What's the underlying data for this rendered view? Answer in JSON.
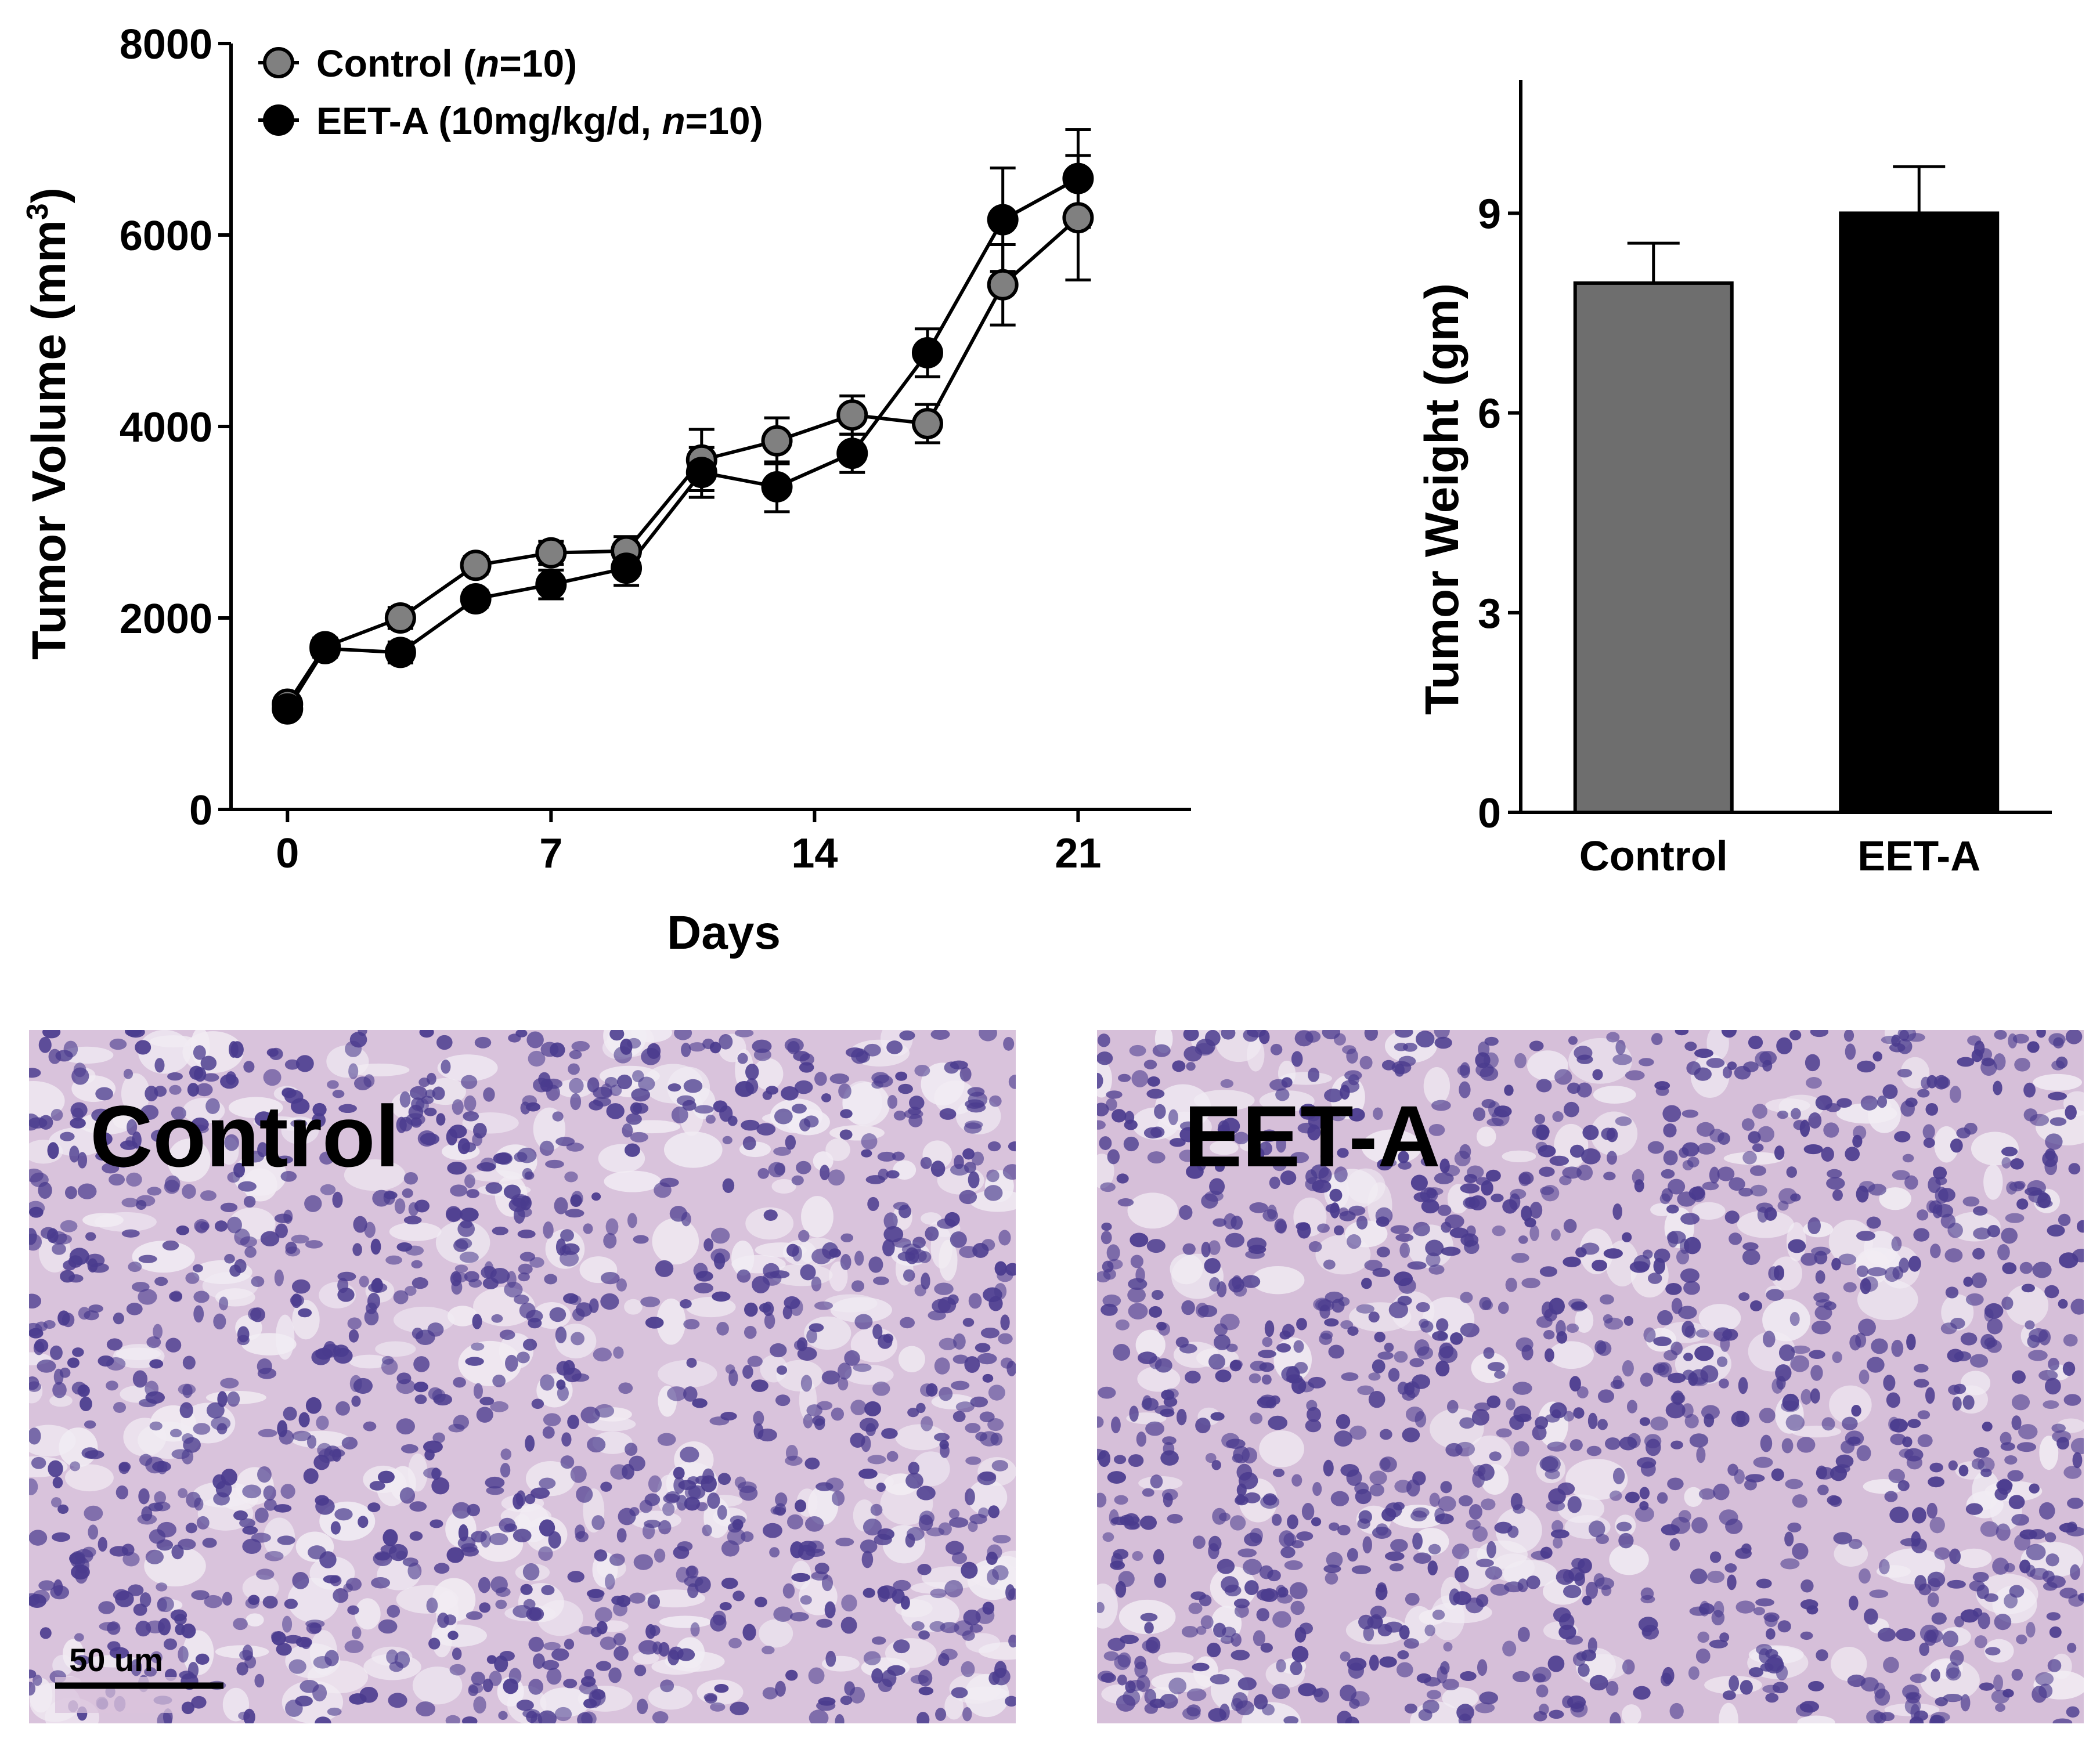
{
  "chart_data": [
    {
      "type": "line",
      "title": "",
      "xlabel": "Days",
      "ylabel": "Tumor Volume (mm3)",
      "ylabel_main": "Tumor Volume (mm",
      "ylabel_sup": "3",
      "ylabel_close": ")",
      "xlim": [
        -1.5,
        24
      ],
      "ylim": [
        0,
        8000
      ],
      "xticks": [
        0,
        7,
        14,
        21
      ],
      "xtick_labels": [
        "0",
        "7",
        "14",
        "21"
      ],
      "yticks": [
        0,
        2000,
        4000,
        6000,
        8000
      ],
      "ytick_labels": [
        "0",
        "2000",
        "4000",
        "6000",
        "8000"
      ],
      "legend_position": "top-left",
      "series": [
        {
          "name": "Control (n=10)",
          "legend_main": "Control (",
          "legend_italic": "n",
          "legend_end": "=10)",
          "color": "#808080",
          "x": [
            0,
            1,
            3,
            5,
            7,
            9,
            11,
            13,
            15,
            17,
            19,
            21
          ],
          "y": [
            1100,
            1700,
            2000,
            2550,
            2680,
            2700,
            3650,
            3850,
            4120,
            4030,
            5480,
            6180
          ],
          "err": [
            80,
            90,
            110,
            90,
            120,
            150,
            320,
            240,
            200,
            200,
            420,
            650
          ]
        },
        {
          "name": "EET-A (10mg/kg/d, n=10)",
          "legend_main": "EET-A (10mg/kg/d, ",
          "legend_italic": "n",
          "legend_end": "=10)",
          "color": "#000000",
          "x": [
            0,
            1,
            3,
            5,
            7,
            9,
            11,
            13,
            15,
            17,
            19,
            21
          ],
          "y": [
            1050,
            1680,
            1640,
            2200,
            2350,
            2520,
            3520,
            3370,
            3720,
            4770,
            6160,
            6590
          ],
          "err": [
            80,
            90,
            110,
            90,
            150,
            180,
            260,
            260,
            200,
            250,
            540,
            510
          ]
        }
      ]
    },
    {
      "type": "bar",
      "title": "",
      "xlabel": "",
      "ylabel": "Tumor Weight (gm)",
      "ylim": [
        0,
        11
      ],
      "yticks": [
        0,
        3,
        6,
        9
      ],
      "ytick_labels": [
        "0",
        "3",
        "6",
        "9"
      ],
      "categories": [
        "Control",
        "EET-A"
      ],
      "values": [
        7.95,
        9.0
      ],
      "errors": [
        0.6,
        0.7
      ],
      "colors": [
        "#6e6e6e",
        "#000000"
      ]
    }
  ],
  "micrographs": {
    "control_label": "Control",
    "eeta_label": "EET-A",
    "scale_bar_label": "50 um"
  },
  "colors": {
    "tissue_background": "#d9c3dc",
    "nucleus": "#4a3b8e",
    "vacuole": "#f1ecf3"
  }
}
